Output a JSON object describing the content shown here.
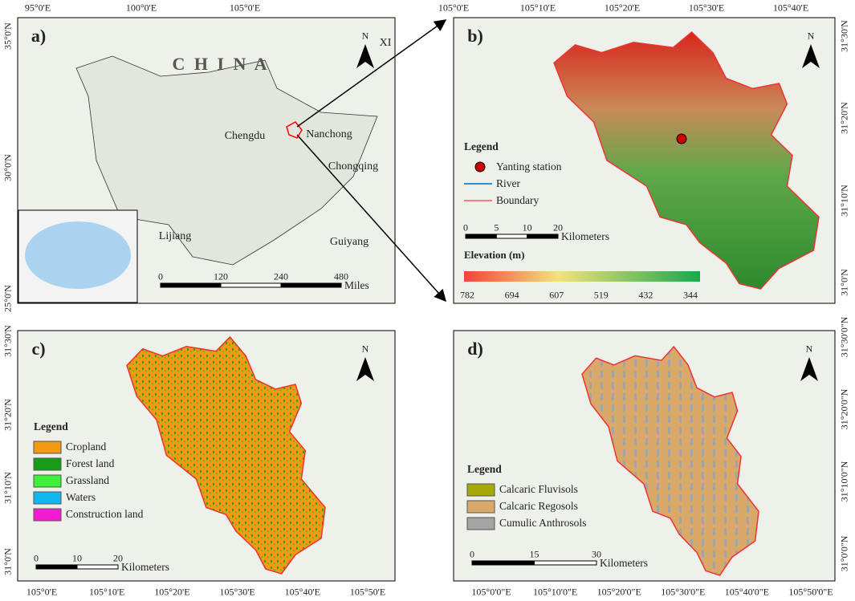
{
  "panel_a": {
    "label": "a)",
    "top_labels": [
      "95°0'E",
      "100°0'E",
      "105°0'E"
    ],
    "left_labels": [
      "35°0'N",
      "30°0'N",
      "25°0'N"
    ],
    "country": "C H I N A",
    "places": [
      "Chengdu",
      "Nanchong",
      "Chongqing",
      "Lijiang",
      "Guiyang",
      "XI"
    ],
    "north": "N",
    "scale": [
      "0",
      "120",
      "240",
      "480"
    ],
    "scale_unit": "Miles"
  },
  "panel_b": {
    "label": "b)",
    "top_labels": [
      "105°0'E",
      "105°10'E",
      "105°20'E",
      "105°30'E",
      "105°40'E"
    ],
    "right_labels": [
      "31°30'N",
      "31°20'N",
      "31°10'N",
      "31°0'N"
    ],
    "north": "N",
    "legend": {
      "title": "Legend",
      "items": [
        "Yanting station",
        "River",
        "Boundary"
      ]
    },
    "scale": [
      "0",
      "5",
      "10",
      "20"
    ],
    "scale_unit": "Kilometers",
    "elevation_title": "Elevation (m)",
    "elevation_labels": [
      "782",
      "694",
      "607",
      "519",
      "432",
      "344"
    ]
  },
  "panel_c": {
    "label": "c)",
    "bottom_labels": [
      "105°0'E",
      "105°10'E",
      "105°20'E",
      "105°30'E",
      "105°40'E",
      "105°50'E"
    ],
    "left_labels": [
      "31°30'N",
      "31°20'N",
      "31°10'N",
      "31°0'N"
    ],
    "north": "N",
    "legend": {
      "title": "Legend",
      "items": [
        "Cropland",
        "Forest land",
        "Grassland",
        "Waters",
        "Construction land"
      ]
    },
    "scale": [
      "0",
      "10",
      "20"
    ],
    "scale_unit": "Kilometers"
  },
  "panel_d": {
    "label": "d)",
    "bottom_labels": [
      "105°0'0\"E",
      "105°10'0\"E",
      "105°20'0\"E",
      "105°30'0\"E",
      "105°40'0\"E",
      "105°50'0\"E"
    ],
    "right_labels": [
      "31°30'0\"N",
      "31°20'0\"N",
      "31°10'0\"N",
      "31°0'0\"N"
    ],
    "north": "N",
    "legend": {
      "title": "Legend",
      "items": [
        "Calcaric Fluvisols",
        "Calcaric Regosols",
        "Cumulic Anthrosols"
      ]
    },
    "scale": [
      "0",
      "15",
      "30"
    ],
    "scale_unit": "Kilometers"
  }
}
